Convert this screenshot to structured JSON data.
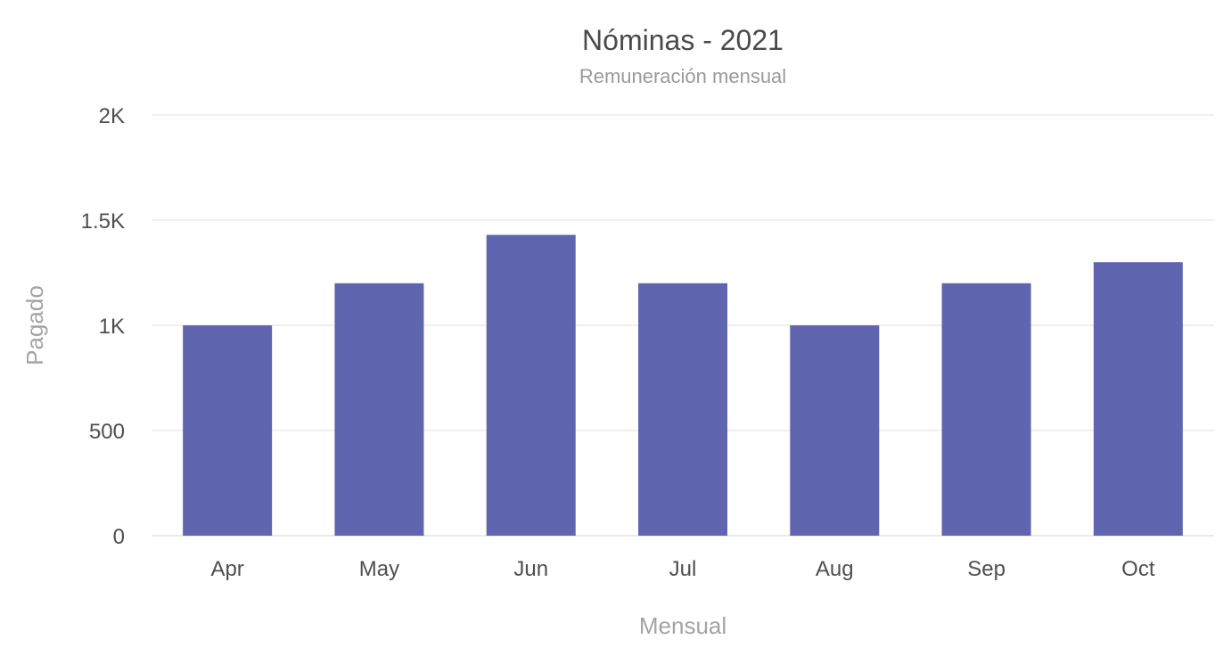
{
  "chart_data": {
    "type": "bar",
    "title": "Nóminas - 2021",
    "subtitle": "Remuneración mensual",
    "xlabel": "Mensual",
    "ylabel": "Pagado",
    "categories": [
      "Apr",
      "May",
      "Jun",
      "Jul",
      "Aug",
      "Sep",
      "Oct"
    ],
    "series": [
      {
        "values": [
          1000,
          1200,
          1430,
          1200,
          1000,
          1200,
          1300
        ],
        "color": "#5f65af"
      }
    ],
    "ylim": [
      0,
      2000
    ],
    "yticks": [
      0,
      500,
      1000,
      1500,
      2000
    ],
    "ytick_labels": [
      "0",
      "500",
      "1K",
      "1.5K",
      "2K"
    ],
    "grid": true,
    "legend": "none"
  }
}
